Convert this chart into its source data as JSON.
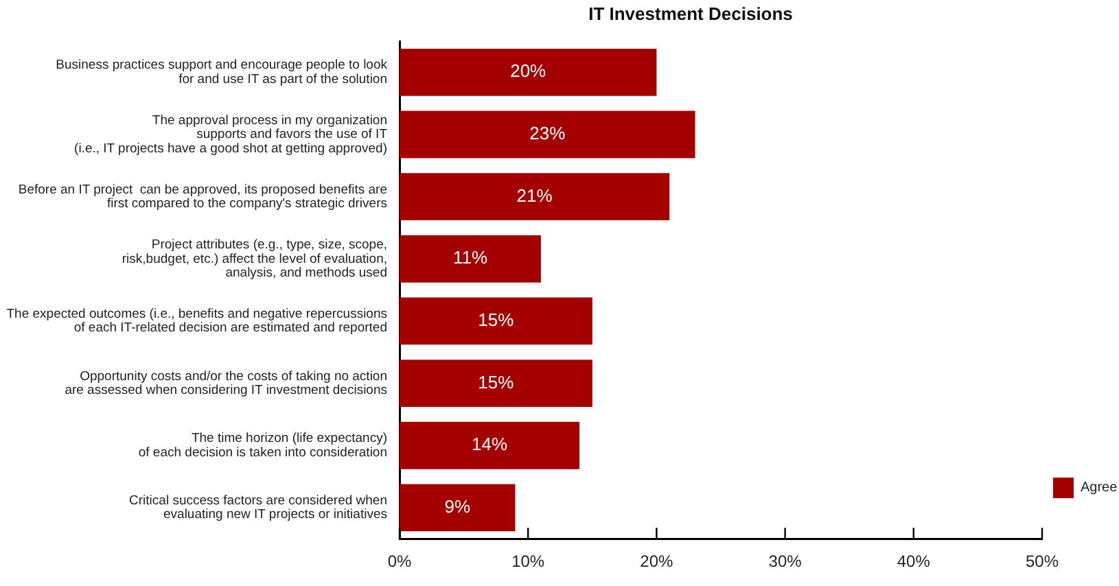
{
  "chart_data": {
    "type": "bar",
    "orientation": "horizontal",
    "title": "IT Investment Decisions",
    "categories": [
      "Business practices support and encourage people to look\nfor and use IT as part of the solution",
      "The approval process in my organization\nsupports and favors the use of IT\n(i.e., IT projects have a good shot at getting approved)",
      "Before an IT project  can be approved, its proposed benefits are\nfirst compared to the company's strategic drivers",
      "Project attributes (e.g., type, size, scope,\nrisk,budget, etc.) affect the level of evaluation,\nanalysis, and methods used",
      "The expected outcomes (i.e., benefits and negative repercussions\nof each IT-related decision are estimated and reported",
      "Opportunity costs and/or the costs of taking no action\nare assessed when considering IT investment decisions",
      "The time horizon (life expectancy)\nof each decision is taken into consideration",
      "Critical success factors are considered when\nevaluating new IT projects or initiatives"
    ],
    "series": [
      {
        "name": "Agree",
        "color": "#a40000",
        "values": [
          20,
          23,
          21,
          11,
          15,
          15,
          14,
          9
        ],
        "value_labels": [
          "20%",
          "23%",
          "21%",
          "11%",
          "15%",
          "15%",
          "14%",
          "9%"
        ]
      }
    ],
    "xlim": [
      0,
      50
    ],
    "xticks": [
      {
        "value": 0,
        "label": "0%"
      },
      {
        "value": 10,
        "label": "10%"
      },
      {
        "value": 20,
        "label": "20%"
      },
      {
        "value": 30,
        "label": "30%"
      },
      {
        "value": 40,
        "label": "40%"
      },
      {
        "value": 50,
        "label": "50%"
      }
    ],
    "grid": false,
    "legend": "bottom right"
  }
}
